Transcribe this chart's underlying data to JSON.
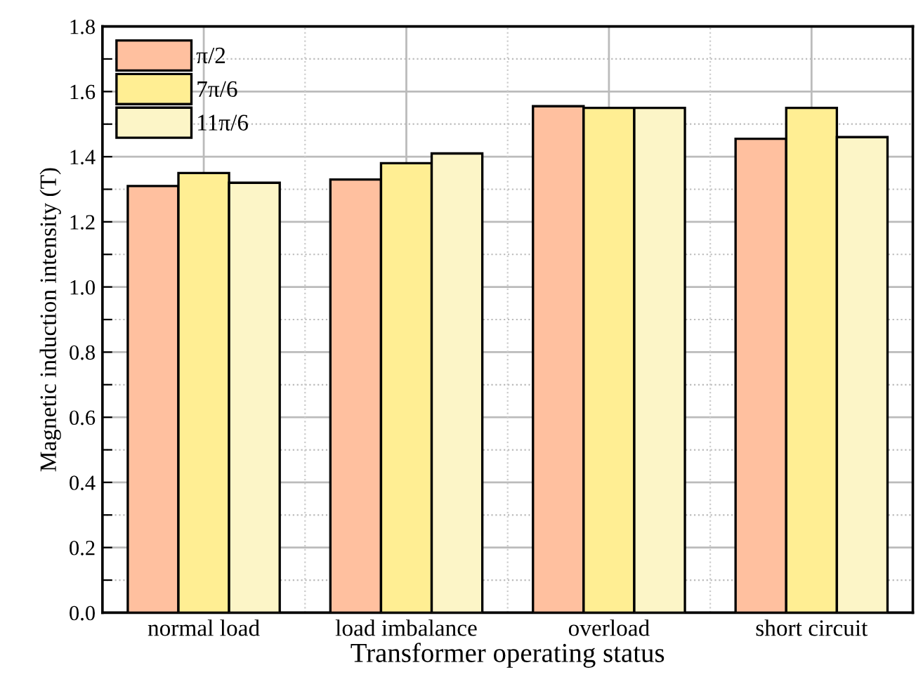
{
  "chart_data": {
    "type": "bar",
    "xlabel": "Transformer operating status",
    "ylabel": "Magnetic induction intensity (T)",
    "categories": [
      "normal load",
      "load imbalance",
      "overload",
      "short circuit"
    ],
    "series": [
      {
        "name": "π/2",
        "color": "#ffc09f",
        "values": [
          1.31,
          1.33,
          1.555,
          1.455
        ]
      },
      {
        "name": "7π/6",
        "color": "#ffee93",
        "values": [
          1.35,
          1.38,
          1.55,
          1.55
        ]
      },
      {
        "name": "11π/6",
        "color": "#fcf5c7",
        "values": [
          1.32,
          1.41,
          1.55,
          1.46
        ]
      }
    ],
    "ylim": [
      0,
      1.8
    ],
    "yticks": [
      {
        "value": 0,
        "label": "0.0"
      },
      {
        "value": 0.1,
        "label": null
      },
      0.2,
      {
        "value": 0.3,
        "label": null
      },
      0.4,
      {
        "value": 0.5,
        "label": null
      },
      0.6,
      {
        "value": 0.7,
        "label": null
      },
      0.8,
      {
        "value": 0.9,
        "label": null
      },
      {
        "value": 1,
        "label": "1.0"
      },
      {
        "value": 1.1,
        "label": null
      },
      1.2,
      {
        "value": 1.3,
        "label": null
      },
      1.4,
      {
        "value": 1.5,
        "label": null
      },
      1.6,
      {
        "value": 1.7,
        "label": null
      },
      1.8
    ],
    "grid": true,
    "legend": "top left"
  }
}
